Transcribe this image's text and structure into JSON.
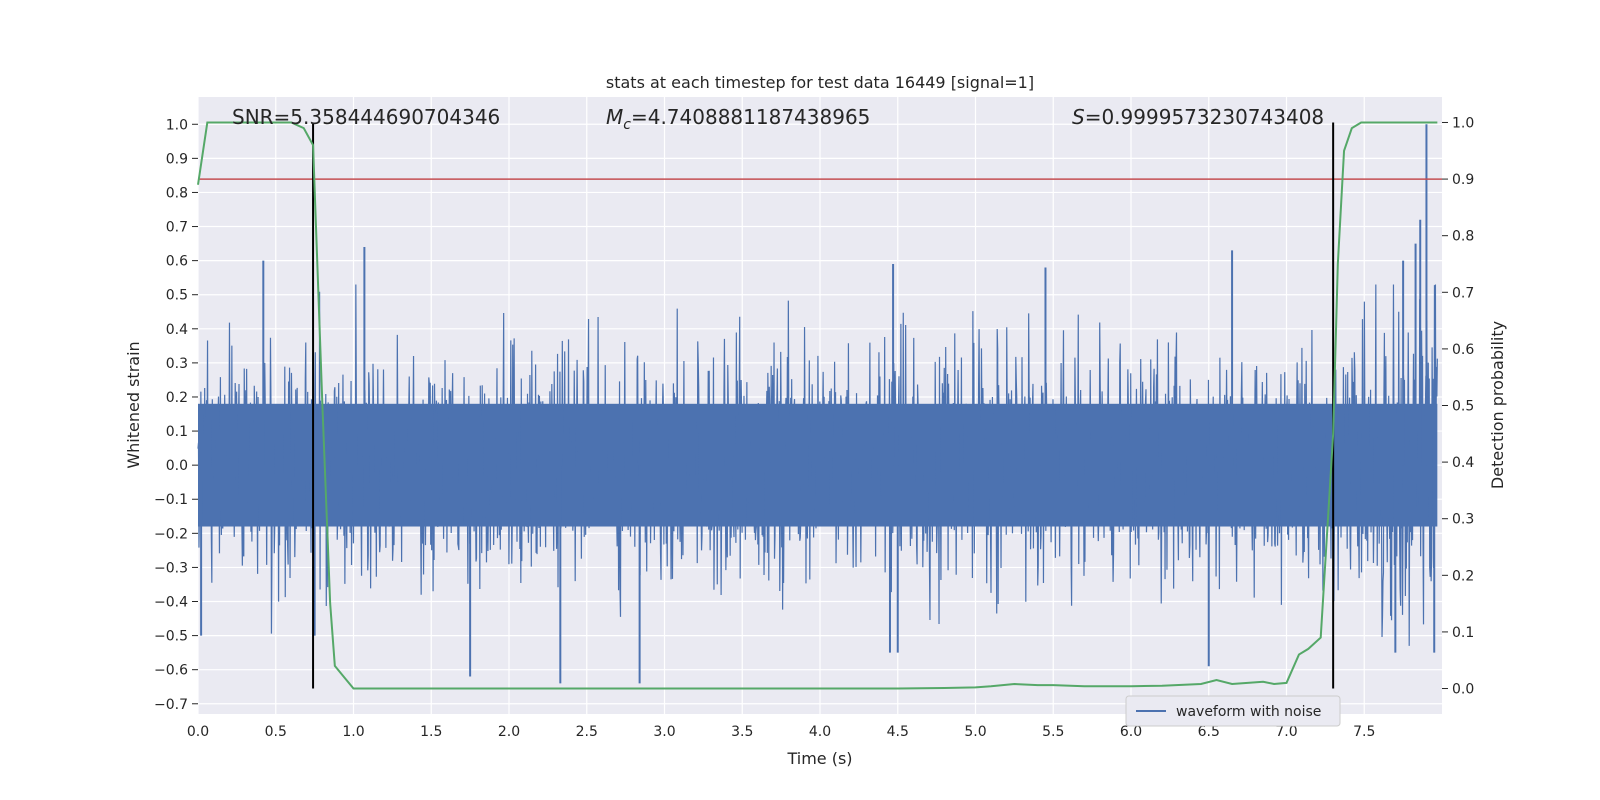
{
  "chart_data": {
    "type": "line",
    "title": "stats at each timestep for test data 16449 [signal=1]",
    "xlabel": "Time (s)",
    "ylabel": "Whitened strain",
    "y2label": "Detection probability",
    "xlim": [
      0.0,
      8.0
    ],
    "ylim": [
      -0.73,
      1.08
    ],
    "y2lim": [
      -0.045,
      1.045
    ],
    "x_ticks": [
      "0.0",
      "0.5",
      "1.0",
      "1.5",
      "2.0",
      "2.5",
      "3.0",
      "3.5",
      "4.0",
      "4.5",
      "5.0",
      "5.5",
      "6.0",
      "6.5",
      "7.0",
      "7.5"
    ],
    "y_ticks": [
      "−0.7",
      "−0.6",
      "−0.5",
      "−0.4",
      "−0.3",
      "−0.2",
      "−0.1",
      "0.0",
      "0.1",
      "0.2",
      "0.3",
      "0.4",
      "0.5",
      "0.6",
      "0.7",
      "0.8",
      "0.9",
      "1.0"
    ],
    "y2_ticks": [
      "0.0",
      "0.1",
      "0.2",
      "0.3",
      "0.4",
      "0.5",
      "0.6",
      "0.7",
      "0.8",
      "0.9",
      "1.0"
    ],
    "grid": true,
    "legend": {
      "position": "lower-right",
      "entries": [
        "waveform with noise"
      ]
    },
    "annotations": {
      "snr": "SNR=5.358444690704346",
      "mc_symbol": "M",
      "mc_sub": "c",
      "mc_value": "=4.7408881187438965",
      "s_symbol": "S",
      "s_value": "=0.9999573230743408"
    },
    "series": [
      {
        "name": "waveform with noise",
        "axis": "left",
        "color": "#4c72b0",
        "style": "dense-noise",
        "band_core": 0.18,
        "typical_peak": 0.45,
        "max": 1.0,
        "min": -0.64,
        "extreme_points": [
          [
            0.42,
            0.6
          ],
          [
            1.07,
            0.64
          ],
          [
            2.33,
            -0.64
          ],
          [
            2.84,
            -0.64
          ],
          [
            1.75,
            -0.62
          ],
          [
            4.47,
            0.59
          ],
          [
            5.45,
            0.58
          ],
          [
            6.65,
            0.63
          ],
          [
            6.5,
            -0.59
          ],
          [
            7.9,
            1.0
          ],
          [
            7.86,
            0.72
          ],
          [
            7.83,
            0.65
          ],
          [
            7.75,
            0.6
          ],
          [
            0.02,
            -0.5
          ],
          [
            0.75,
            -0.5
          ],
          [
            4.45,
            -0.55
          ],
          [
            4.5,
            -0.55
          ],
          [
            7.7,
            -0.55
          ],
          [
            7.95,
            -0.55
          ]
        ]
      },
      {
        "name": "",
        "axis": "right",
        "color": "#55a868",
        "x": [
          0.0,
          0.06,
          0.1,
          0.2,
          0.4,
          0.6,
          0.68,
          0.74,
          0.8,
          0.85,
          0.88,
          0.94,
          1.0,
          1.5,
          2.0,
          2.5,
          3.0,
          3.5,
          4.0,
          4.5,
          4.8,
          5.0,
          5.1,
          5.25,
          5.4,
          5.5,
          5.7,
          6.0,
          6.2,
          6.45,
          6.55,
          6.65,
          6.75,
          6.85,
          6.92,
          7.0,
          7.08,
          7.14,
          7.22,
          7.3,
          7.33,
          7.37,
          7.42,
          7.48,
          7.55,
          7.75,
          7.97
        ],
        "y": [
          0.89,
          1.0,
          1.0,
          1.0,
          1.0,
          1.0,
          0.99,
          0.96,
          0.5,
          0.15,
          0.04,
          0.02,
          0.0,
          0.0,
          0.0,
          0.0,
          0.0,
          0.0,
          0.0,
          0.0,
          0.001,
          0.002,
          0.004,
          0.008,
          0.006,
          0.006,
          0.004,
          0.004,
          0.005,
          0.008,
          0.015,
          0.008,
          0.01,
          0.012,
          0.008,
          0.01,
          0.06,
          0.07,
          0.09,
          0.45,
          0.75,
          0.95,
          0.99,
          1.0,
          1.0,
          1.0,
          1.0
        ]
      }
    ],
    "threshold": {
      "axis": "right",
      "value": 0.9,
      "color": "#c44e52"
    },
    "vlines": [
      {
        "x": 0.74,
        "color": "#000000"
      },
      {
        "x": 7.3,
        "color": "#000000"
      }
    ]
  }
}
